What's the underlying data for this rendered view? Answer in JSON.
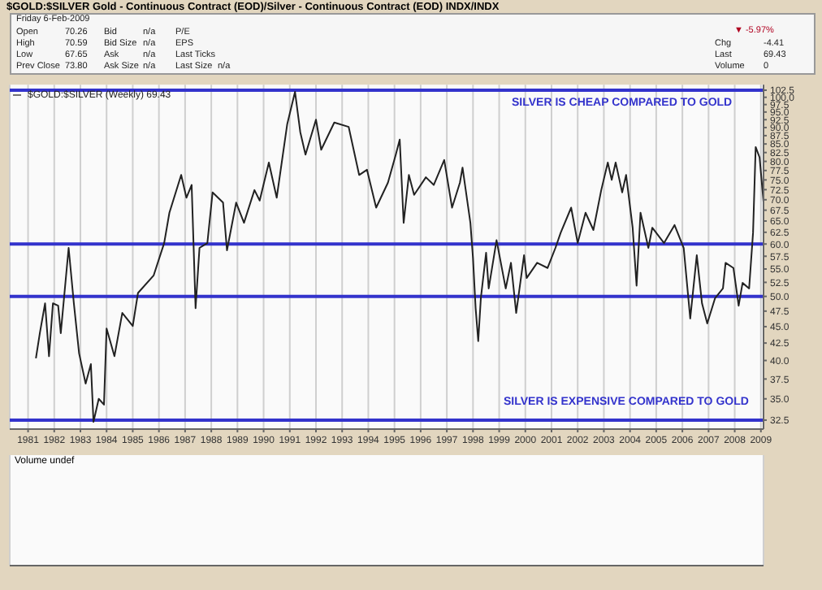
{
  "chart_data": {
    "type": "line",
    "title": "$GOLD:$SILVER Gold - Continuous Contract (EOD)/Silver - Continuous Contract (EOD) INDX/INDX",
    "annotations": [
      "SILVER IS CHEAP COMPARED TO GOLD",
      "SILVER IS EXPENSIVE COMPARED TO GOLD",
      "Volume undef",
      "Friday 6-Feb-2009",
      "Open",
      "70.26",
      "High",
      "70.59",
      "Low",
      "67.65",
      "Prev Close",
      "73.80",
      "Bid",
      "n/a",
      "Bid Size",
      "n/a",
      "Ask",
      "n/a",
      "Ask Size",
      "n/a",
      "P/E",
      "EPS",
      "Last Ticks",
      "Last Size",
      "n/a",
      "▼ -5.97%",
      "Chg",
      "-4.41",
      "Last",
      "69.43",
      "Volume",
      "0"
    ],
    "x": [
      1981.3,
      1981.45,
      1981.65,
      1981.8,
      1981.95,
      1982.15,
      1982.25,
      1982.55,
      1982.75,
      1982.95,
      1983.2,
      1983.4,
      1983.5,
      1983.7,
      1983.9,
      1984.0,
      1984.3,
      1984.6,
      1985.0,
      1985.2,
      1985.8,
      1986.2,
      1986.4,
      1986.85,
      1987.05,
      1987.25,
      1987.4,
      1987.55,
      1987.85,
      1988.05,
      1988.45,
      1988.6,
      1988.95,
      1989.25,
      1989.65,
      1989.85,
      1990.2,
      1990.5,
      1990.9,
      1991.2,
      1991.4,
      1991.6,
      1992.0,
      1992.2,
      1992.7,
      1993.25,
      1993.65,
      1993.95,
      1994.3,
      1994.75,
      1995.05,
      1995.2,
      1995.35,
      1995.55,
      1995.75,
      1996.2,
      1996.5,
      1996.9,
      1997.2,
      1997.5,
      1997.6,
      1997.9,
      1998.0,
      1998.1,
      1998.2,
      1998.3,
      1998.5,
      1998.6,
      1998.9,
      1999.25,
      1999.45,
      1999.65,
      1999.95,
      2000.05,
      2000.45,
      2000.85,
      2001.15,
      2001.35,
      2001.75,
      2002.0,
      2002.3,
      2002.6,
      2002.9,
      2003.15,
      2003.3,
      2003.45,
      2003.7,
      2003.85,
      2004.1,
      2004.25,
      2004.4,
      2004.7,
      2004.85,
      2005.3,
      2005.7,
      2006.05,
      2006.3,
      2006.55,
      2006.75,
      2006.95,
      2007.25,
      2007.55,
      2007.65,
      2007.95,
      2008.15,
      2008.3,
      2008.55,
      2008.7,
      2008.8,
      2008.95,
      2009.1
    ],
    "series": [
      {
        "name": "$GOLD:$SILVER (Weekly) 69.43",
        "color": "#222222",
        "values": [
          40.3,
          44.0,
          48.8,
          40.6,
          48.8,
          48.4,
          44.0,
          59.2,
          48.8,
          41.0,
          36.9,
          39.5,
          32.3,
          35.0,
          34.3,
          44.7,
          40.6,
          47.2,
          45.1,
          50.6,
          53.8,
          60.2,
          66.9,
          76.3,
          70.5,
          73.7,
          48.0,
          59.2,
          60.2,
          71.8,
          69.3,
          58.7,
          69.3,
          64.6,
          72.4,
          69.8,
          79.7,
          70.5,
          91.0,
          101.9,
          88.6,
          81.9,
          92.5,
          83.3,
          91.6,
          90.2,
          76.3,
          77.7,
          68.1,
          74.3,
          81.9,
          86.3,
          64.6,
          76.3,
          71.2,
          75.7,
          73.7,
          80.4,
          68.1,
          74.3,
          78.3,
          64.6,
          57.1,
          48.0,
          42.8,
          49.7,
          58.2,
          51.4,
          60.8,
          51.4,
          56.2,
          47.2,
          57.7,
          53.3,
          56.2,
          55.2,
          59.2,
          62.4,
          68.1,
          60.2,
          66.9,
          63.0,
          72.4,
          79.7,
          75.0,
          79.7,
          71.8,
          76.3,
          63.5,
          51.9,
          66.9,
          59.2,
          63.5,
          60.2,
          64.1,
          59.2,
          46.3,
          57.7,
          48.8,
          45.5,
          49.7,
          51.4,
          56.2,
          55.2,
          48.4,
          52.4,
          51.4,
          62.4,
          84.1,
          81.1,
          69.43
        ]
      }
    ],
    "ref_lines": [
      {
        "axis": "y",
        "value": 102.5,
        "color": "#3333cc"
      },
      {
        "axis": "y",
        "value": 60,
        "color": "#3333cc"
      },
      {
        "axis": "y",
        "value": 50,
        "color": "#3333cc"
      },
      {
        "axis": "y",
        "value": 32.5,
        "color": "#3333cc"
      }
    ],
    "xlim": [
      1980.3,
      2009.1
    ],
    "xticks": [
      1981,
      1982,
      1983,
      1984,
      1985,
      1986,
      1987,
      1988,
      1989,
      1990,
      1991,
      1992,
      1993,
      1994,
      1995,
      1996,
      1997,
      1998,
      1999,
      2000,
      2001,
      2002,
      2003,
      2004,
      2005,
      2006,
      2007,
      2008,
      2009
    ],
    "ylim": [
      31.5,
      104.5
    ],
    "log": "y",
    "yticks": [
      {
        "value": 32.5,
        "label": "32.5"
      },
      {
        "value": 35,
        "label": "35.0"
      },
      {
        "value": 37.5,
        "label": "37.5"
      },
      {
        "value": 40,
        "label": "40.0"
      },
      {
        "value": 42.5,
        "label": "42.5"
      },
      {
        "value": 45,
        "label": "45.0"
      },
      {
        "value": 47.5,
        "label": "47.5"
      },
      {
        "value": 50,
        "label": "50.0"
      },
      {
        "value": 52.5,
        "label": "52.5"
      },
      {
        "value": 55,
        "label": "55.0"
      },
      {
        "value": 57.5,
        "label": "57.5"
      },
      {
        "value": 60,
        "label": "60.0"
      },
      {
        "value": 62.5,
        "label": "62.5"
      },
      {
        "value": 65,
        "label": "65.0"
      },
      {
        "value": 67.5,
        "label": "67.5"
      },
      {
        "value": 70,
        "label": "70.0"
      },
      {
        "value": 72.5,
        "label": "72.5"
      },
      {
        "value": 75,
        "label": "75.0"
      },
      {
        "value": 77.5,
        "label": "77.5"
      },
      {
        "value": 80,
        "label": "80.0"
      },
      {
        "value": 82.5,
        "label": "82.5"
      },
      {
        "value": 85,
        "label": "85.0"
      },
      {
        "value": 87.5,
        "label": "87.5"
      },
      {
        "value": 90,
        "label": "90.0"
      },
      {
        "value": 92.5,
        "label": "92.5"
      },
      {
        "value": 95,
        "label": "95.0"
      },
      {
        "value": 97.5,
        "label": "97.5"
      },
      {
        "value": 100,
        "label": "100.0"
      },
      {
        "value": 102.5,
        "label": "102.5"
      }
    ],
    "grid": "x",
    "legend": "top left"
  }
}
